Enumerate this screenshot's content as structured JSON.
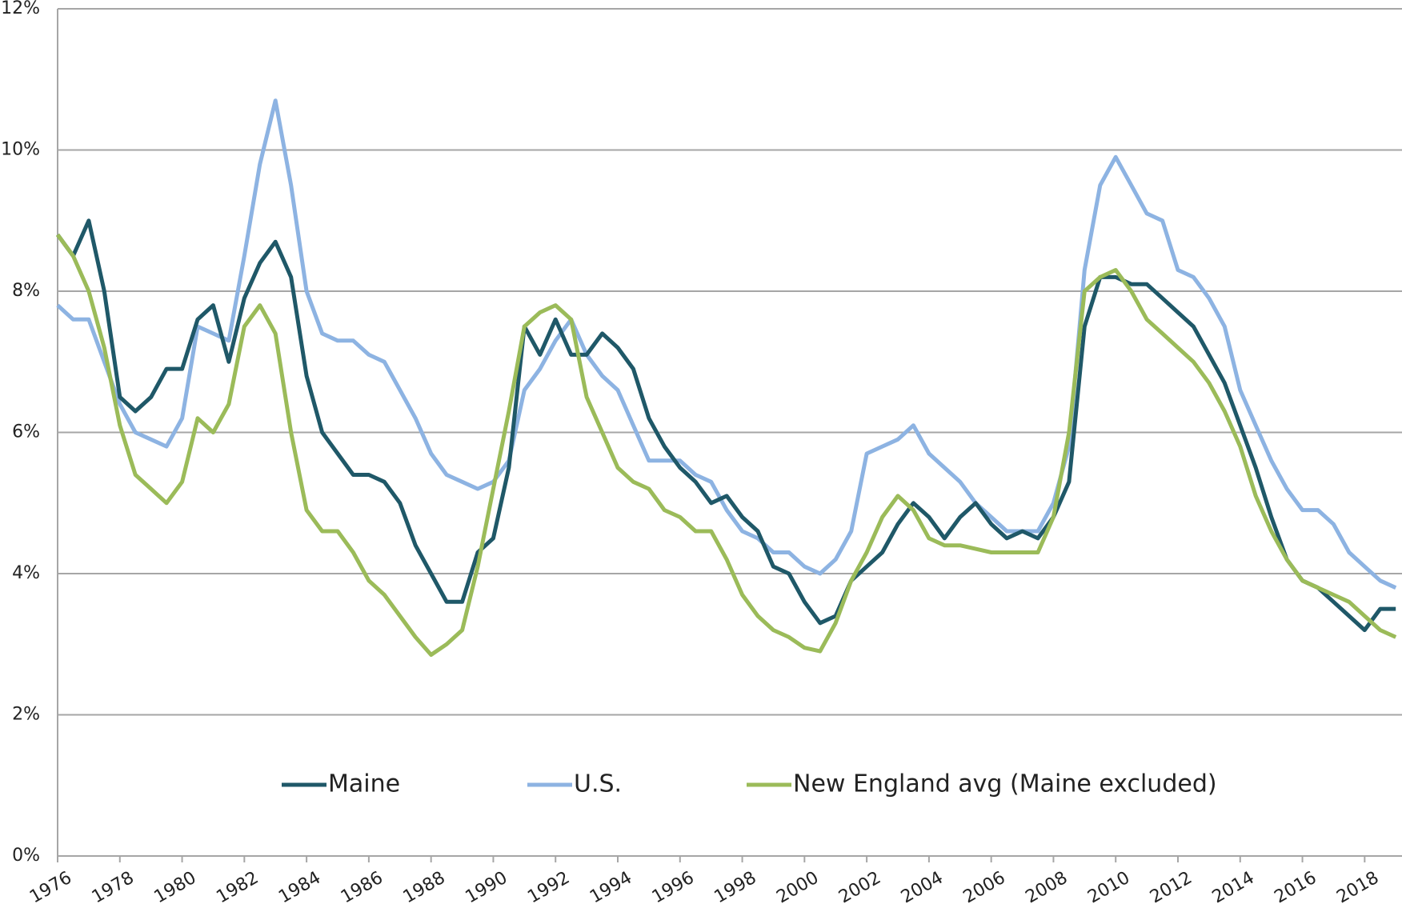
{
  "chart_data": {
    "type": "line",
    "x": [
      1976,
      1976.5,
      1977,
      1977.5,
      1978,
      1978.5,
      1979,
      1979.5,
      1980,
      1980.5,
      1981,
      1981.5,
      1982,
      1982.5,
      1983,
      1983.5,
      1984,
      1984.5,
      1985,
      1985.5,
      1986,
      1986.5,
      1987,
      1987.5,
      1988,
      1988.5,
      1989,
      1989.5,
      1990,
      1990.5,
      1991,
      1991.5,
      1992,
      1992.5,
      1993,
      1993.5,
      1994,
      1994.5,
      1995,
      1995.5,
      1996,
      1996.5,
      1997,
      1997.5,
      1998,
      1998.5,
      1999,
      1999.5,
      2000,
      2000.5,
      2001,
      2001.5,
      2002,
      2002.5,
      2003,
      2003.5,
      2004,
      2004.5,
      2005,
      2005.5,
      2006,
      2006.5,
      2007,
      2007.5,
      2008,
      2008.5,
      2009,
      2009.5,
      2010,
      2010.5,
      2011,
      2011.5,
      2012,
      2012.5,
      2013,
      2013.5,
      2014,
      2014.5,
      2015,
      2015.5,
      2016,
      2016.5,
      2017,
      2017.5,
      2018,
      2018.5,
      2019
    ],
    "series": [
      {
        "name": "Maine",
        "color": "#1f5868",
        "values": [
          8.8,
          8.5,
          9.0,
          8.0,
          6.5,
          6.3,
          6.5,
          6.9,
          6.9,
          7.6,
          7.8,
          7.0,
          7.9,
          8.4,
          8.7,
          8.2,
          6.8,
          6.0,
          5.7,
          5.4,
          5.4,
          5.3,
          5.0,
          4.4,
          4.0,
          3.6,
          3.6,
          4.3,
          4.5,
          5.5,
          7.5,
          7.1,
          7.6,
          7.1,
          7.1,
          7.4,
          7.2,
          6.9,
          6.2,
          5.8,
          5.5,
          5.3,
          5.0,
          5.1,
          4.8,
          4.6,
          4.1,
          4.0,
          3.6,
          3.3,
          3.4,
          3.9,
          4.1,
          4.3,
          4.7,
          5.0,
          4.8,
          4.5,
          4.8,
          5.0,
          4.7,
          4.5,
          4.6,
          4.5,
          4.8,
          5.3,
          7.5,
          8.2,
          8.2,
          8.1,
          8.1,
          7.9,
          7.7,
          7.5,
          7.1,
          6.7,
          6.1,
          5.5,
          4.8,
          4.2,
          3.9,
          3.8,
          3.6,
          3.4,
          3.2,
          3.5,
          3.5
        ]
      },
      {
        "name": "U.S.",
        "color": "#8db3e2",
        "values": [
          7.8,
          7.6,
          7.6,
          7.0,
          6.4,
          6.0,
          5.9,
          5.8,
          6.2,
          7.5,
          7.4,
          7.3,
          8.5,
          9.8,
          10.7,
          9.5,
          8.0,
          7.4,
          7.3,
          7.3,
          7.1,
          7.0,
          6.6,
          6.2,
          5.7,
          5.4,
          5.3,
          5.2,
          5.3,
          5.6,
          6.6,
          6.9,
          7.3,
          7.6,
          7.1,
          6.8,
          6.6,
          6.1,
          5.6,
          5.6,
          5.6,
          5.4,
          5.3,
          4.9,
          4.6,
          4.5,
          4.3,
          4.3,
          4.1,
          4.0,
          4.2,
          4.6,
          5.7,
          5.8,
          5.9,
          6.1,
          5.7,
          5.5,
          5.3,
          5.0,
          4.8,
          4.6,
          4.6,
          4.6,
          5.0,
          5.8,
          8.3,
          9.5,
          9.9,
          9.5,
          9.1,
          9.0,
          8.3,
          8.2,
          7.9,
          7.5,
          6.6,
          6.1,
          5.6,
          5.2,
          4.9,
          4.9,
          4.7,
          4.3,
          4.1,
          3.9,
          3.8
        ]
      },
      {
        "name": "New England avg (Maine excluded)",
        "color": "#9bbb59",
        "values": [
          8.8,
          8.5,
          8.0,
          7.2,
          6.1,
          5.4,
          5.2,
          5.0,
          5.3,
          6.2,
          6.0,
          6.4,
          7.5,
          7.8,
          7.4,
          6.0,
          4.9,
          4.6,
          4.6,
          4.3,
          3.9,
          3.7,
          3.4,
          3.1,
          2.85,
          3.0,
          3.2,
          4.1,
          5.2,
          6.3,
          7.5,
          7.7,
          7.8,
          7.6,
          6.5,
          6.0,
          5.5,
          5.3,
          5.2,
          4.9,
          4.8,
          4.6,
          4.6,
          4.2,
          3.7,
          3.4,
          3.2,
          3.1,
          2.95,
          2.9,
          3.3,
          3.9,
          4.3,
          4.8,
          5.1,
          4.9,
          4.5,
          4.4,
          4.4,
          4.35,
          4.3,
          4.3,
          4.3,
          4.3,
          4.8,
          6.0,
          8.0,
          8.2,
          8.3,
          8.0,
          7.6,
          7.4,
          7.2,
          7.0,
          6.7,
          6.3,
          5.8,
          5.1,
          4.6,
          4.2,
          3.9,
          3.8,
          3.7,
          3.6,
          3.4,
          3.2,
          3.1
        ]
      }
    ],
    "xlim": [
      1976,
      2019.2
    ],
    "xticks": [
      1976,
      1978,
      1980,
      1982,
      1984,
      1986,
      1988,
      1990,
      1992,
      1994,
      1996,
      1998,
      2000,
      2002,
      2004,
      2006,
      2008,
      2010,
      2012,
      2014,
      2016,
      2018
    ],
    "ylim": [
      0,
      12
    ],
    "yticks": [
      {
        "value": 0,
        "label": "0%"
      },
      {
        "value": 2,
        "label": "2%"
      },
      {
        "value": 4,
        "label": "4%"
      },
      {
        "value": 6,
        "label": "6%"
      },
      {
        "value": 8,
        "label": "8%"
      },
      {
        "value": 10,
        "label": "10%"
      },
      {
        "value": 12,
        "label": "12%"
      }
    ],
    "grid": true,
    "legend": "bottom"
  }
}
